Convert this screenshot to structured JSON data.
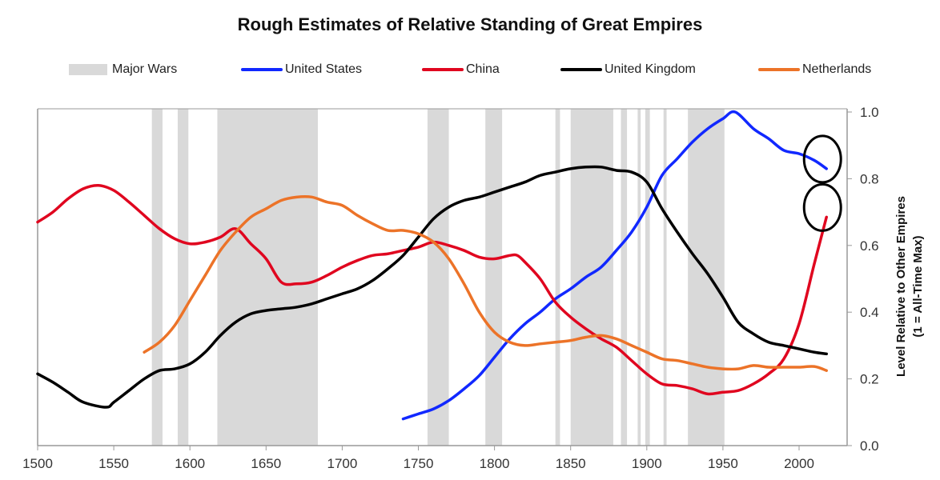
{
  "chart_data": {
    "type": "line",
    "title": "Rough Estimates of Relative Standing of Great Empires",
    "xlabel": "",
    "ylabel": "Level Relative to Other Empires",
    "ylabel2": "(1 = All-Time Max)",
    "xlim": [
      1500,
      2032
    ],
    "ylim": [
      0,
      1.0
    ],
    "x_ticks": [
      "1500",
      "1550",
      "1600",
      "1650",
      "1700",
      "1750",
      "1800",
      "1850",
      "1900",
      "1950",
      "2000"
    ],
    "y_ticks": [
      "0.0",
      "0.2",
      "0.4",
      "0.6",
      "0.8",
      "1.0"
    ],
    "grid": false,
    "y_axis_side": "right",
    "legend_position": "top",
    "major_wars": {
      "name": "Major Wars",
      "color": "#d9d9d9",
      "periods": [
        [
          1575,
          1582
        ],
        [
          1592,
          1599
        ],
        [
          1618,
          1684
        ],
        [
          1756,
          1770
        ],
        [
          1794,
          1805
        ],
        [
          1840,
          1843
        ],
        [
          1850,
          1878
        ],
        [
          1883,
          1887
        ],
        [
          1894,
          1896
        ],
        [
          1899,
          1902
        ],
        [
          1911,
          1913
        ],
        [
          1927,
          1951
        ]
      ]
    },
    "series": [
      {
        "name": "United States",
        "color": "#1128ff",
        "x": [
          1740,
          1750,
          1760,
          1770,
          1780,
          1790,
          1800,
          1810,
          1820,
          1830,
          1840,
          1850,
          1860,
          1870,
          1880,
          1890,
          1900,
          1910,
          1920,
          1930,
          1940,
          1950,
          1958,
          1970,
          1980,
          1990,
          2000,
          2010,
          2018
        ],
        "y": [
          0.08,
          0.095,
          0.11,
          0.135,
          0.17,
          0.21,
          0.265,
          0.32,
          0.365,
          0.4,
          0.44,
          0.47,
          0.505,
          0.535,
          0.585,
          0.64,
          0.715,
          0.81,
          0.86,
          0.91,
          0.95,
          0.98,
          1.0,
          0.95,
          0.92,
          0.885,
          0.875,
          0.855,
          0.83
        ]
      },
      {
        "name": "China",
        "color": "#e0061f",
        "x": [
          1500,
          1510,
          1520,
          1530,
          1540,
          1550,
          1560,
          1570,
          1580,
          1590,
          1600,
          1610,
          1620,
          1630,
          1640,
          1650,
          1660,
          1670,
          1680,
          1690,
          1700,
          1710,
          1720,
          1730,
          1740,
          1750,
          1760,
          1770,
          1780,
          1790,
          1800,
          1810,
          1815,
          1820,
          1830,
          1840,
          1850,
          1860,
          1870,
          1880,
          1890,
          1900,
          1910,
          1920,
          1930,
          1940,
          1950,
          1960,
          1970,
          1980,
          1990,
          2000,
          2010,
          2018
        ],
        "y": [
          0.67,
          0.7,
          0.74,
          0.77,
          0.78,
          0.765,
          0.73,
          0.69,
          0.65,
          0.62,
          0.605,
          0.61,
          0.625,
          0.65,
          0.605,
          0.56,
          0.49,
          0.485,
          0.49,
          0.51,
          0.535,
          0.555,
          0.57,
          0.575,
          0.585,
          0.595,
          0.61,
          0.6,
          0.585,
          0.565,
          0.56,
          0.57,
          0.57,
          0.55,
          0.5,
          0.43,
          0.385,
          0.35,
          0.32,
          0.295,
          0.255,
          0.215,
          0.185,
          0.18,
          0.17,
          0.155,
          0.16,
          0.165,
          0.185,
          0.215,
          0.26,
          0.365,
          0.545,
          0.685
        ]
      },
      {
        "name": "United Kingdom",
        "color": "#000000",
        "x": [
          1500,
          1510,
          1520,
          1530,
          1545,
          1550,
          1560,
          1570,
          1580,
          1590,
          1600,
          1610,
          1620,
          1630,
          1640,
          1650,
          1660,
          1670,
          1680,
          1690,
          1700,
          1710,
          1720,
          1730,
          1740,
          1750,
          1760,
          1770,
          1780,
          1790,
          1800,
          1810,
          1820,
          1830,
          1840,
          1850,
          1860,
          1870,
          1880,
          1890,
          1900,
          1910,
          1920,
          1930,
          1940,
          1950,
          1960,
          1970,
          1980,
          1990,
          2000,
          2010,
          2018
        ],
        "y": [
          0.215,
          0.19,
          0.16,
          0.13,
          0.115,
          0.13,
          0.165,
          0.2,
          0.225,
          0.23,
          0.245,
          0.28,
          0.33,
          0.37,
          0.395,
          0.405,
          0.41,
          0.415,
          0.425,
          0.44,
          0.455,
          0.47,
          0.495,
          0.53,
          0.57,
          0.625,
          0.68,
          0.715,
          0.735,
          0.745,
          0.76,
          0.775,
          0.79,
          0.81,
          0.82,
          0.83,
          0.835,
          0.835,
          0.825,
          0.82,
          0.79,
          0.71,
          0.64,
          0.575,
          0.515,
          0.445,
          0.37,
          0.335,
          0.31,
          0.3,
          0.29,
          0.28,
          0.275
        ]
      },
      {
        "name": "Netherlands",
        "color": "#ec7328",
        "x": [
          1570,
          1580,
          1590,
          1600,
          1610,
          1620,
          1630,
          1640,
          1650,
          1660,
          1670,
          1680,
          1690,
          1700,
          1710,
          1720,
          1730,
          1740,
          1750,
          1760,
          1770,
          1780,
          1790,
          1800,
          1810,
          1820,
          1830,
          1840,
          1850,
          1860,
          1870,
          1880,
          1890,
          1900,
          1910,
          1920,
          1930,
          1940,
          1950,
          1960,
          1970,
          1980,
          1990,
          2000,
          2010,
          2018
        ],
        "y": [
          0.28,
          0.31,
          0.36,
          0.435,
          0.51,
          0.585,
          0.64,
          0.685,
          0.71,
          0.735,
          0.745,
          0.745,
          0.73,
          0.72,
          0.69,
          0.665,
          0.645,
          0.645,
          0.635,
          0.61,
          0.56,
          0.485,
          0.4,
          0.34,
          0.31,
          0.3,
          0.305,
          0.31,
          0.315,
          0.325,
          0.33,
          0.32,
          0.3,
          0.28,
          0.26,
          0.255,
          0.245,
          0.235,
          0.23,
          0.23,
          0.24,
          0.235,
          0.235,
          0.235,
          0.237,
          0.225
        ]
      }
    ],
    "annotations": [
      {
        "type": "circle",
        "target": "United States",
        "x": 2018,
        "y": 0.83
      },
      {
        "type": "circle",
        "target": "China",
        "x": 2018,
        "y": 0.685
      }
    ]
  }
}
